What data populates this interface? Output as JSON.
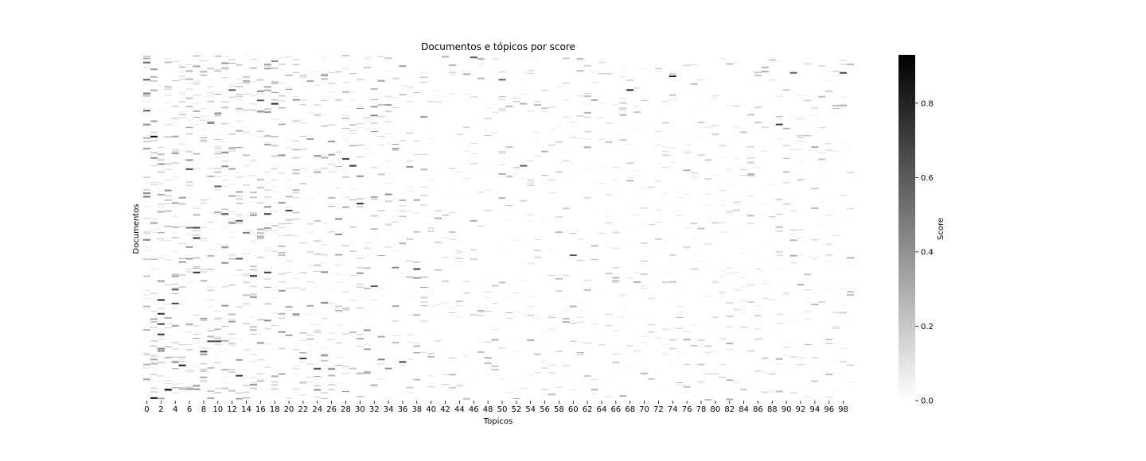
{
  "chart_data": {
    "type": "heatmap",
    "title": "Documentos e tópicos por score",
    "xlabel": "Topicos",
    "ylabel": "Documentos",
    "x_ticks": [
      0,
      2,
      4,
      6,
      8,
      10,
      12,
      14,
      16,
      18,
      20,
      22,
      24,
      26,
      28,
      30,
      32,
      34,
      36,
      38,
      40,
      42,
      44,
      46,
      48,
      50,
      52,
      54,
      56,
      58,
      60,
      62,
      64,
      66,
      68,
      70,
      72,
      74,
      76,
      78,
      80,
      82,
      84,
      86,
      88,
      90,
      92,
      94,
      96,
      98
    ],
    "n_topics": 100,
    "y_ticks": [],
    "grid": false,
    "colormap": [
      "#ffffff",
      "#000000"
    ],
    "colorbar": {
      "label": "Score",
      "range": [
        0,
        0.93
      ],
      "ticks": [
        0.0,
        0.2,
        0.4,
        0.6,
        0.8
      ],
      "tick_labels": [
        "0.0",
        "0.2",
        "0.4",
        "0.6",
        "0.8"
      ],
      "placement": "right"
    },
    "series": [
      {
        "topic": 0,
        "doc_fraction": 0.02,
        "score": 0.55
      },
      {
        "topic": 0,
        "doc_fraction": 0.07,
        "score": 0.6
      },
      {
        "topic": 0,
        "doc_fraction": 0.11,
        "score": 0.5
      },
      {
        "topic": 0,
        "doc_fraction": 0.16,
        "score": 0.6
      },
      {
        "topic": 0,
        "doc_fraction": 0.2,
        "score": 0.4
      },
      {
        "topic": 0,
        "doc_fraction": 0.27,
        "score": 0.35
      },
      {
        "topic": 0,
        "doc_fraction": 0.4,
        "score": 0.45
      },
      {
        "topic": 0,
        "doc_fraction": 0.41,
        "score": 0.5
      },
      {
        "topic": 1,
        "doc_fraction": 0.235,
        "score": 0.95
      },
      {
        "topic": 1,
        "doc_fraction": 0.995,
        "score": 0.9
      },
      {
        "topic": 2,
        "doc_fraction": 0.71,
        "score": 0.8
      },
      {
        "topic": 2,
        "doc_fraction": 0.75,
        "score": 0.75
      },
      {
        "topic": 2,
        "doc_fraction": 0.78,
        "score": 0.7
      },
      {
        "topic": 2,
        "doc_fraction": 0.81,
        "score": 0.75
      },
      {
        "topic": 3,
        "doc_fraction": 0.97,
        "score": 0.8
      },
      {
        "topic": 4,
        "doc_fraction": 0.68,
        "score": 0.6
      },
      {
        "topic": 4,
        "doc_fraction": 0.72,
        "score": 0.7
      },
      {
        "topic": 5,
        "doc_fraction": 0.9,
        "score": 0.85
      },
      {
        "topic": 6,
        "doc_fraction": 0.33,
        "score": 0.7
      },
      {
        "topic": 6,
        "doc_fraction": 0.5,
        "score": 0.5
      },
      {
        "topic": 7,
        "doc_fraction": 0.5,
        "score": 0.7
      },
      {
        "topic": 7,
        "doc_fraction": 0.53,
        "score": 0.75
      },
      {
        "topic": 7,
        "doc_fraction": 0.63,
        "score": 0.75
      },
      {
        "topic": 8,
        "doc_fraction": 0.86,
        "score": 0.7
      },
      {
        "topic": 9,
        "doc_fraction": 0.83,
        "score": 0.7
      },
      {
        "topic": 10,
        "doc_fraction": 0.38,
        "score": 0.6
      },
      {
        "topic": 10,
        "doc_fraction": 0.83,
        "score": 0.7
      },
      {
        "topic": 11,
        "doc_fraction": 0.46,
        "score": 0.6
      },
      {
        "topic": 12,
        "doc_fraction": 0.1,
        "score": 0.6
      },
      {
        "topic": 13,
        "doc_fraction": 0.48,
        "score": 0.6
      },
      {
        "topic": 13,
        "doc_fraction": 0.59,
        "score": 0.6
      },
      {
        "topic": 13,
        "doc_fraction": 0.93,
        "score": 0.7
      },
      {
        "topic": 15,
        "doc_fraction": 0.64,
        "score": 0.7
      },
      {
        "topic": 16,
        "doc_fraction": 0.13,
        "score": 0.6
      },
      {
        "topic": 17,
        "doc_fraction": 0.46,
        "score": 0.7
      },
      {
        "topic": 17,
        "doc_fraction": 0.63,
        "score": 0.7
      },
      {
        "topic": 18,
        "doc_fraction": 0.14,
        "score": 0.8
      },
      {
        "topic": 20,
        "doc_fraction": 0.45,
        "score": 0.7
      },
      {
        "topic": 22,
        "doc_fraction": 0.88,
        "score": 0.7
      },
      {
        "topic": 24,
        "doc_fraction": 0.91,
        "score": 0.6
      },
      {
        "topic": 28,
        "doc_fraction": 0.3,
        "score": 0.7
      },
      {
        "topic": 29,
        "doc_fraction": 0.32,
        "score": 0.75
      },
      {
        "topic": 30,
        "doc_fraction": 0.43,
        "score": 0.8
      },
      {
        "topic": 32,
        "doc_fraction": 0.67,
        "score": 0.6
      },
      {
        "topic": 36,
        "doc_fraction": 0.89,
        "score": 0.7
      },
      {
        "topic": 38,
        "doc_fraction": 0.62,
        "score": 0.7
      },
      {
        "topic": 46,
        "doc_fraction": 0.005,
        "score": 0.6
      },
      {
        "topic": 50,
        "doc_fraction": 0.07,
        "score": 0.6
      },
      {
        "topic": 53,
        "doc_fraction": 0.32,
        "score": 0.6
      },
      {
        "topic": 60,
        "doc_fraction": 0.58,
        "score": 0.6
      },
      {
        "topic": 68,
        "doc_fraction": 0.1,
        "score": 0.8
      },
      {
        "topic": 74,
        "doc_fraction": 0.06,
        "score": 0.8
      },
      {
        "topic": 89,
        "doc_fraction": 0.2,
        "score": 0.7
      },
      {
        "topic": 91,
        "doc_fraction": 0.05,
        "score": 0.6
      },
      {
        "topic": 98,
        "doc_fraction": 0.05,
        "score": 0.7
      }
    ]
  }
}
